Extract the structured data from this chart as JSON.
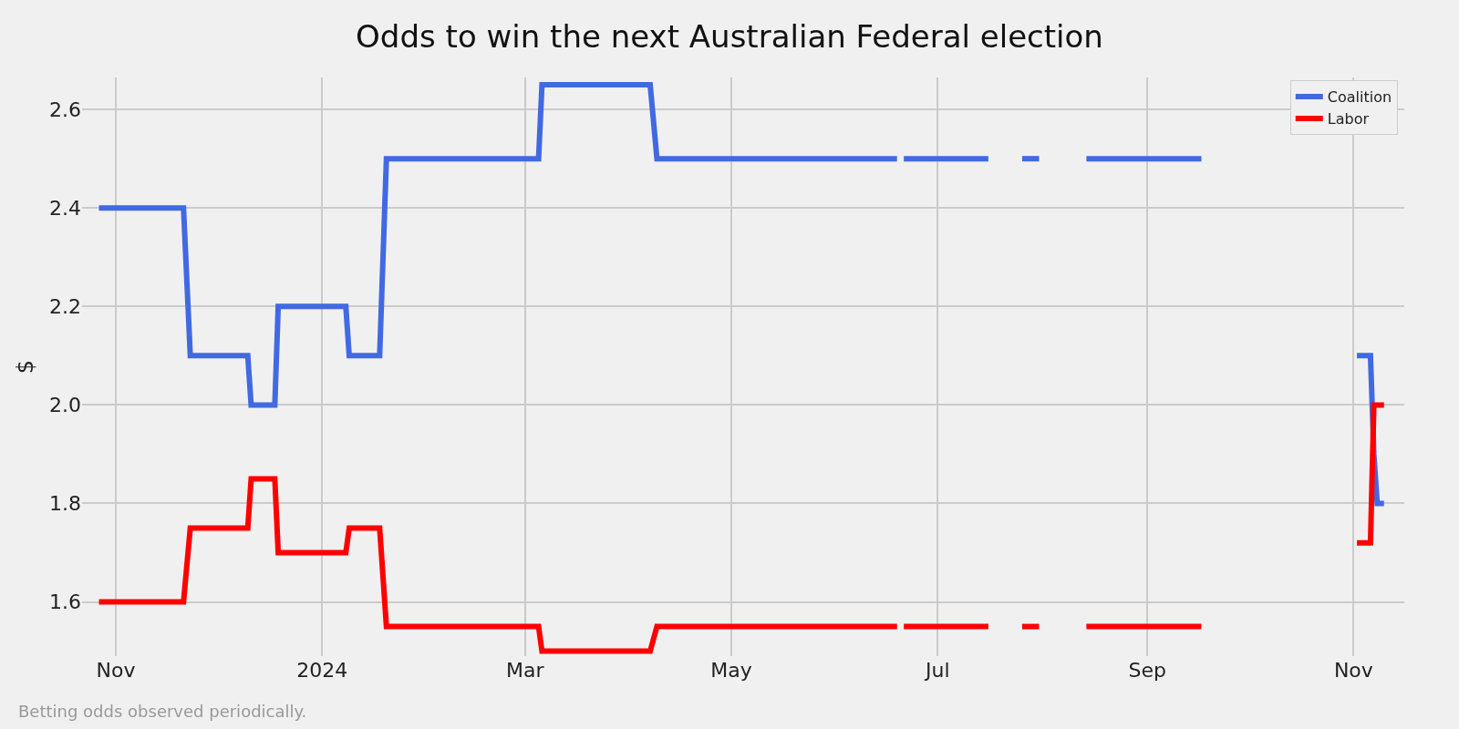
{
  "chart_data": {
    "type": "line",
    "title": "Odds to win the next Australian Federal election",
    "ylabel": "$",
    "x": [
      "2023-10-27",
      "2023-11-21",
      "2023-11-23",
      "2023-12-10",
      "2023-12-11",
      "2023-12-18",
      "2023-12-19",
      "2024-01-08",
      "2024-01-09",
      "2024-01-18",
      "2024-01-20",
      "2024-03-05",
      "2024-03-06",
      "2024-04-07",
      "2024-04-09",
      "2024-06-19",
      "2024-06-20",
      "2024-06-21",
      "2024-07-16",
      "2024-07-21",
      "2024-07-26",
      "2024-07-31",
      "2024-08-07",
      "2024-08-14",
      "2024-09-17",
      "2024-10-10",
      "2024-11-02",
      "2024-11-05",
      "2024-11-06",
      "2024-11-07",
      "2024-11-08",
      "2024-11-10"
    ],
    "series": [
      {
        "name": "Coalition",
        "color": "#4169e1",
        "values": [
          2.4,
          2.4,
          2.1,
          2.1,
          2.0,
          2.0,
          2.2,
          2.2,
          2.1,
          2.1,
          2.5,
          2.5,
          2.65,
          2.65,
          2.5,
          2.5,
          null,
          2.5,
          2.5,
          null,
          2.5,
          2.5,
          null,
          2.5,
          2.5,
          null,
          2.1,
          2.1,
          2.1,
          1.9,
          1.8,
          1.8
        ]
      },
      {
        "name": "Labor",
        "color": "#ff0000",
        "values": [
          1.6,
          1.6,
          1.75,
          1.75,
          1.85,
          1.85,
          1.7,
          1.7,
          1.75,
          1.75,
          1.55,
          1.55,
          1.5,
          1.5,
          1.55,
          1.55,
          null,
          1.55,
          1.55,
          null,
          1.55,
          1.55,
          null,
          1.55,
          1.55,
          null,
          1.72,
          1.72,
          1.72,
          2.0,
          2.0,
          2.0
        ]
      }
    ],
    "xlim": [
      "2023-10-22",
      "2024-11-16"
    ],
    "xticks": [
      {
        "value": "2023-11-01",
        "label": "Nov"
      },
      {
        "value": "2024-01-01",
        "label": "2024"
      },
      {
        "value": "2024-03-01",
        "label": "Mar"
      },
      {
        "value": "2024-05-01",
        "label": "May"
      },
      {
        "value": "2024-07-01",
        "label": "Jul"
      },
      {
        "value": "2024-09-01",
        "label": "Sep"
      },
      {
        "value": "2024-11-01",
        "label": "Nov"
      }
    ],
    "ylim": [
      1.49,
      2.665
    ],
    "yticks": [
      1.6,
      1.8,
      {
        "value": 2.0,
        "label": "2.0"
      },
      2.2,
      2.4,
      2.6
    ],
    "grid": true,
    "legend": "top right",
    "marker": "none",
    "line_style": "solid",
    "annotations": [
      "Betting odds observed periodically."
    ]
  }
}
